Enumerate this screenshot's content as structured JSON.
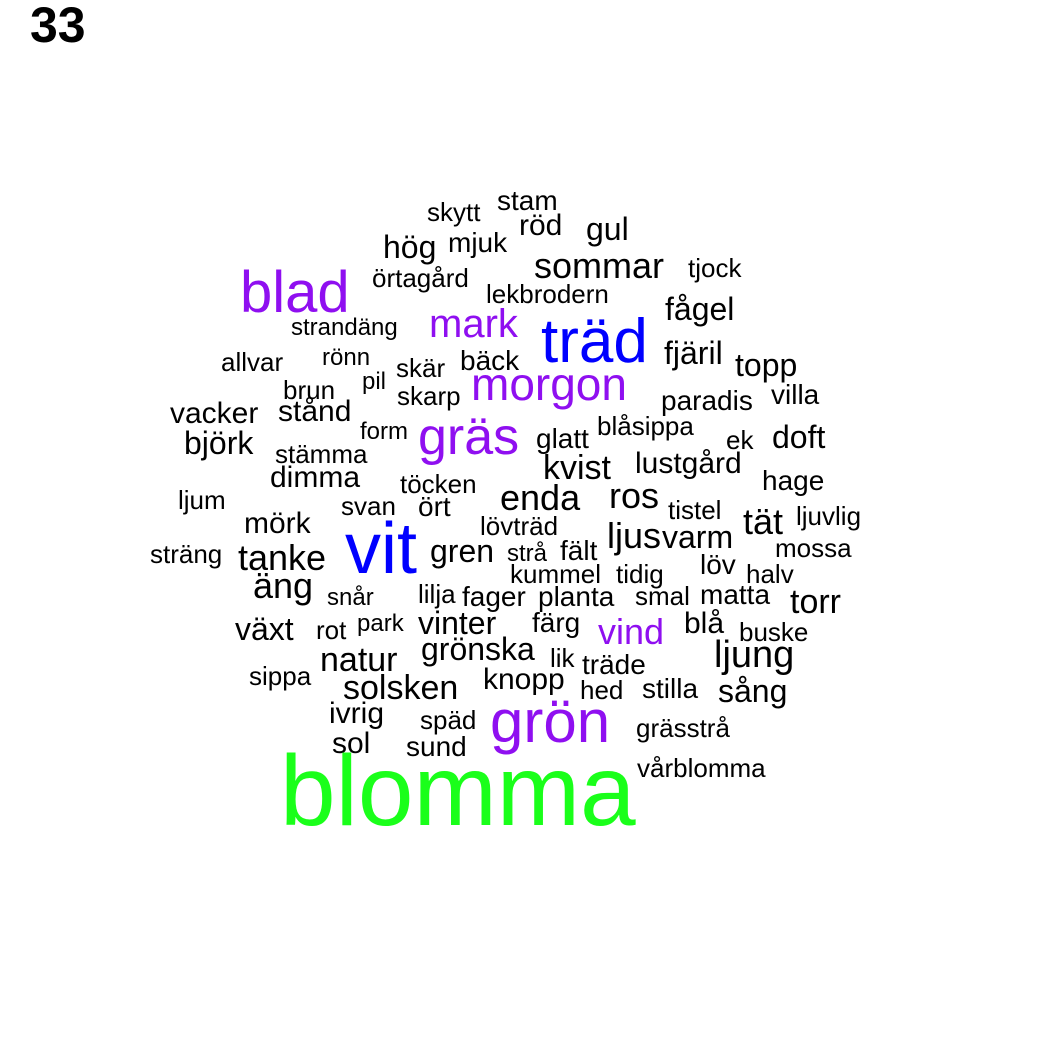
{
  "page_number": "33",
  "colors": {
    "black": "#000000",
    "blue": "#0000ff",
    "purple": "#8f0ff0",
    "green": "#1aff1a"
  },
  "words": [
    {
      "text": "stam",
      "color": "black"
    },
    {
      "text": "skytt",
      "color": "black"
    },
    {
      "text": "röd",
      "color": "black"
    },
    {
      "text": "gul",
      "color": "black"
    },
    {
      "text": "hög",
      "color": "black"
    },
    {
      "text": "mjuk",
      "color": "black"
    },
    {
      "text": "sommar",
      "color": "black"
    },
    {
      "text": "tjock",
      "color": "black"
    },
    {
      "text": "örtagård",
      "color": "black"
    },
    {
      "text": "blad",
      "color": "purple"
    },
    {
      "text": "lekbrodern",
      "color": "black"
    },
    {
      "text": "fågel",
      "color": "black"
    },
    {
      "text": "mark",
      "color": "purple"
    },
    {
      "text": "strandäng",
      "color": "black"
    },
    {
      "text": "träd",
      "color": "blue"
    },
    {
      "text": "allvar",
      "color": "black"
    },
    {
      "text": "rönn",
      "color": "black"
    },
    {
      "text": "skär",
      "color": "black"
    },
    {
      "text": "bäck",
      "color": "black"
    },
    {
      "text": "fjäril",
      "color": "black"
    },
    {
      "text": "topp",
      "color": "black"
    },
    {
      "text": "pil",
      "color": "black"
    },
    {
      "text": "brun",
      "color": "black"
    },
    {
      "text": "morgon",
      "color": "purple"
    },
    {
      "text": "skarp",
      "color": "black"
    },
    {
      "text": "villa",
      "color": "black"
    },
    {
      "text": "paradis",
      "color": "black"
    },
    {
      "text": "vacker",
      "color": "black"
    },
    {
      "text": "stånd",
      "color": "black"
    },
    {
      "text": "form",
      "color": "black"
    },
    {
      "text": "gräs",
      "color": "purple"
    },
    {
      "text": "blåsippa",
      "color": "black"
    },
    {
      "text": "glatt",
      "color": "black"
    },
    {
      "text": "ek",
      "color": "black"
    },
    {
      "text": "doft",
      "color": "black"
    },
    {
      "text": "björk",
      "color": "black"
    },
    {
      "text": "stämma",
      "color": "black"
    },
    {
      "text": "lustgård",
      "color": "black"
    },
    {
      "text": "kvist",
      "color": "black"
    },
    {
      "text": "dimma",
      "color": "black"
    },
    {
      "text": "töcken",
      "color": "black"
    },
    {
      "text": "hage",
      "color": "black"
    },
    {
      "text": "ros",
      "color": "black"
    },
    {
      "text": "ljum",
      "color": "black"
    },
    {
      "text": "enda",
      "color": "black"
    },
    {
      "text": "svan",
      "color": "black"
    },
    {
      "text": "ört",
      "color": "black"
    },
    {
      "text": "tistel",
      "color": "black"
    },
    {
      "text": "ljuvlig",
      "color": "black"
    },
    {
      "text": "tät",
      "color": "black"
    },
    {
      "text": "mörk",
      "color": "black"
    },
    {
      "text": "lövträd",
      "color": "black"
    },
    {
      "text": "vit",
      "color": "blue"
    },
    {
      "text": "ljus",
      "color": "black"
    },
    {
      "text": "varm",
      "color": "black"
    },
    {
      "text": "mossa",
      "color": "black"
    },
    {
      "text": "sträng",
      "color": "black"
    },
    {
      "text": "tanke",
      "color": "black"
    },
    {
      "text": "gren",
      "color": "black"
    },
    {
      "text": "strå",
      "color": "black"
    },
    {
      "text": "fält",
      "color": "black"
    },
    {
      "text": "löv",
      "color": "black"
    },
    {
      "text": "kummel",
      "color": "black"
    },
    {
      "text": "tidig",
      "color": "black"
    },
    {
      "text": "halv",
      "color": "black"
    },
    {
      "text": "äng",
      "color": "black"
    },
    {
      "text": "snår",
      "color": "black"
    },
    {
      "text": "lilja",
      "color": "black"
    },
    {
      "text": "fager",
      "color": "black"
    },
    {
      "text": "planta",
      "color": "black"
    },
    {
      "text": "smal",
      "color": "black"
    },
    {
      "text": "matta",
      "color": "black"
    },
    {
      "text": "torr",
      "color": "black"
    },
    {
      "text": "växt",
      "color": "black"
    },
    {
      "text": "rot",
      "color": "black"
    },
    {
      "text": "park",
      "color": "black"
    },
    {
      "text": "vinter",
      "color": "black"
    },
    {
      "text": "färg",
      "color": "black"
    },
    {
      "text": "vind",
      "color": "purple"
    },
    {
      "text": "blå",
      "color": "black"
    },
    {
      "text": "buske",
      "color": "black"
    },
    {
      "text": "grönska",
      "color": "black"
    },
    {
      "text": "natur",
      "color": "black"
    },
    {
      "text": "lik",
      "color": "black"
    },
    {
      "text": "träde",
      "color": "black"
    },
    {
      "text": "ljung",
      "color": "black"
    },
    {
      "text": "sippa",
      "color": "black"
    },
    {
      "text": "knopp",
      "color": "black"
    },
    {
      "text": "solsken",
      "color": "black"
    },
    {
      "text": "hed",
      "color": "black"
    },
    {
      "text": "stilla",
      "color": "black"
    },
    {
      "text": "sång",
      "color": "black"
    },
    {
      "text": "ivrig",
      "color": "black"
    },
    {
      "text": "späd",
      "color": "black"
    },
    {
      "text": "grön",
      "color": "purple"
    },
    {
      "text": "grässtrå",
      "color": "black"
    },
    {
      "text": "sol",
      "color": "black"
    },
    {
      "text": "sund",
      "color": "black"
    },
    {
      "text": "vårblomma",
      "color": "black"
    },
    {
      "text": "blomma",
      "color": "green"
    }
  ]
}
